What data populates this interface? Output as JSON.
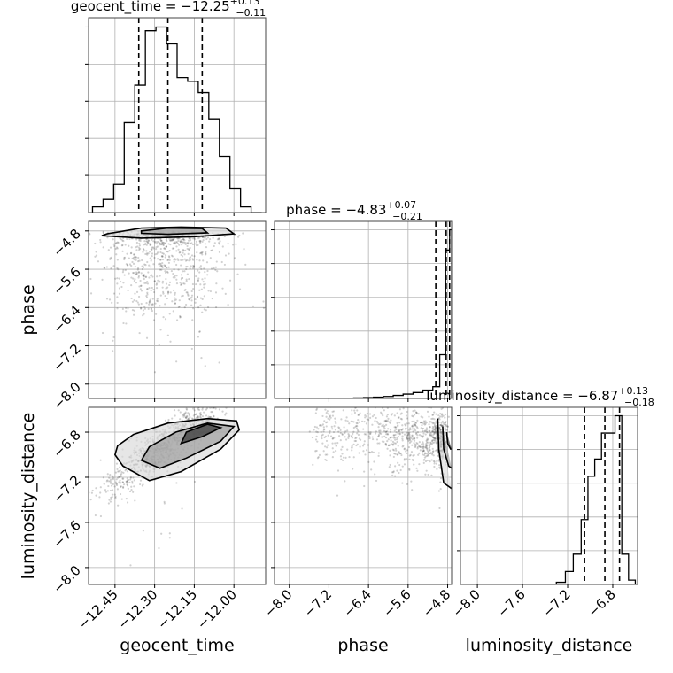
{
  "chart_data": [
    {
      "type": "histogram",
      "panel": "diag-0",
      "param": "geocent_time",
      "title_name": "geocent_time",
      "title_median": "−12.25",
      "title_plus": "+0.13",
      "title_minus": "−0.11",
      "quantiles": [
        -12.36,
        -12.25,
        -12.12
      ],
      "xlim": [
        -12.55,
        -11.88
      ],
      "bin_edges": [
        -12.535,
        -12.495,
        -12.455,
        -12.415,
        -12.375,
        -12.335,
        -12.295,
        -12.255,
        -12.215,
        -12.175,
        -12.135,
        -12.095,
        -12.055,
        -12.015,
        -11.975,
        -11.935,
        -11.895
      ],
      "counts": [
        0.03,
        0.07,
        0.15,
        0.48,
        0.68,
        0.97,
        0.99,
        0.9,
        0.72,
        0.7,
        0.64,
        0.5,
        0.3,
        0.13,
        0.03,
        0.0
      ]
    },
    {
      "type": "histogram",
      "panel": "diag-1",
      "param": "phase",
      "title_name": "phase",
      "title_median": "−4.83",
      "title_plus": "+0.07",
      "title_minus": "−0.21",
      "quantiles": [
        -5.04,
        -4.83,
        -4.76
      ],
      "xlim": [
        -8.3,
        -4.72
      ],
      "bin_edges": [
        -6.7,
        -6.5,
        -6.3,
        -6.1,
        -5.9,
        -5.7,
        -5.5,
        -5.3,
        -5.1,
        -4.96,
        -4.84,
        -4.76,
        -4.72
      ],
      "counts": [
        0.003,
        0.005,
        0.008,
        0.012,
        0.018,
        0.026,
        0.035,
        0.05,
        0.07,
        0.26,
        0.88,
        1.0
      ]
    },
    {
      "type": "histogram",
      "panel": "diag-2",
      "param": "luminosity_distance",
      "title_name": "luminosity_distance",
      "title_median": "−6.87",
      "title_plus": "+0.13",
      "title_minus": "−0.18",
      "quantiles": [
        -7.05,
        -6.87,
        -6.74
      ],
      "xlim": [
        -8.15,
        -6.58
      ],
      "bin_edges": [
        -7.3,
        -7.22,
        -7.15,
        -7.08,
        -7.02,
        -6.96,
        -6.9,
        -6.84,
        -6.78,
        -6.72,
        -6.66,
        -6.6
      ],
      "counts": [
        0.01,
        0.06,
        0.14,
        0.3,
        0.5,
        0.58,
        0.7,
        0.7,
        0.78,
        0.14,
        0.02
      ]
    },
    {
      "type": "scatter",
      "panel": "2d-phase-vs-geocent_time",
      "x_param": "geocent_time",
      "y_param": "phase",
      "xlim": [
        -12.55,
        -11.88
      ],
      "ylim": [
        -8.3,
        -4.6
      ],
      "cloud": {
        "x_center": -12.26,
        "x_spread": 0.12,
        "y_mode": -4.8,
        "y_tail_to": -7.6
      },
      "contours": [
        {
          "x": [
            -12.48,
            -12.35,
            -12.2,
            -12.03,
            -12.0,
            -12.15,
            -12.35,
            -12.5
          ],
          "y": [
            -4.86,
            -4.74,
            -4.72,
            -4.74,
            -4.86,
            -4.92,
            -4.95,
            -4.9
          ]
        },
        {
          "x": [
            -12.35,
            -12.25,
            -12.12,
            -12.1,
            -12.25,
            -12.35
          ],
          "y": [
            -4.8,
            -4.74,
            -4.75,
            -4.84,
            -4.87,
            -4.85
          ]
        }
      ]
    },
    {
      "type": "scatter",
      "panel": "2d-luminosity_distance-vs-geocent_time",
      "x_param": "geocent_time",
      "y_param": "luminosity_distance",
      "xlim": [
        -12.55,
        -11.88
      ],
      "ylim": [
        -8.15,
        -6.58
      ],
      "cloud": {
        "x_center": -12.26,
        "x_spread": 0.12,
        "y_slope": 1.7,
        "y_center": -6.92
      },
      "contours": [
        {
          "x": [
            -12.45,
            -12.42,
            -12.32,
            -12.2,
            -12.05,
            -11.98,
            -11.99,
            -12.1,
            -12.25,
            -12.38,
            -12.44
          ],
          "y": [
            -7.0,
            -7.1,
            -7.23,
            -7.15,
            -6.95,
            -6.78,
            -6.7,
            -6.68,
            -6.72,
            -6.82,
            -6.92
          ]
        },
        {
          "x": [
            -12.35,
            -12.28,
            -12.18,
            -12.05,
            -12.0,
            -12.1,
            -12.22,
            -12.32
          ],
          "y": [
            -7.05,
            -7.12,
            -7.03,
            -6.88,
            -6.75,
            -6.72,
            -6.8,
            -6.93
          ]
        },
        {
          "x": [
            -12.2,
            -12.12,
            -12.05,
            -12.1,
            -12.18
          ],
          "y": [
            -6.9,
            -6.84,
            -6.76,
            -6.73,
            -6.8
          ]
        }
      ]
    },
    {
      "type": "scatter",
      "panel": "2d-luminosity_distance-vs-phase",
      "x_param": "phase",
      "y_param": "luminosity_distance",
      "xlim": [
        -8.3,
        -4.72
      ],
      "ylim": [
        -8.15,
        -6.58
      ],
      "cloud": {
        "x_mode": -4.9,
        "x_tail_to": -7.5,
        "y_center": -6.85
      },
      "contours": [
        {
          "x": [
            -5.0,
            -4.98,
            -4.88,
            -4.72
          ],
          "y": [
            -6.68,
            -6.95,
            -7.25,
            -7.3
          ]
        },
        {
          "x": [
            -4.9,
            -4.88,
            -4.78,
            -4.72
          ],
          "y": [
            -6.75,
            -6.95,
            -7.1,
            -7.12
          ]
        },
        {
          "x": [
            -4.82,
            -4.8,
            -4.74,
            -4.72
          ],
          "y": [
            -6.8,
            -6.9,
            -6.95,
            -6.95
          ]
        }
      ]
    }
  ],
  "axes": {
    "geocent_time": {
      "label": "geocent_time",
      "ticks": [
        -12.45,
        -12.3,
        -12.15,
        -12.0
      ],
      "tick_labels": [
        "−12.45",
        "−12.30",
        "−12.15",
        "−12.00"
      ]
    },
    "phase": {
      "label": "phase",
      "ticks": [
        -8.0,
        -7.2,
        -6.4,
        -5.6,
        -4.8
      ],
      "tick_labels": [
        "−8.0",
        "−7.2",
        "−6.4",
        "−5.6",
        "−4.8"
      ]
    },
    "luminosity_distance": {
      "label": "luminosity_distance",
      "ticks": [
        -8.0,
        -7.6,
        -7.2,
        -6.8
      ],
      "tick_labels": [
        "−8.0",
        "−7.6",
        "−7.2",
        "−6.8"
      ]
    }
  },
  "grid": true,
  "colors": {
    "line": "#000000",
    "grid": "#b0b0b0",
    "points": "#000000",
    "fill_dark": "#2a2a2a",
    "fill_light": "#d9d9d9"
  }
}
